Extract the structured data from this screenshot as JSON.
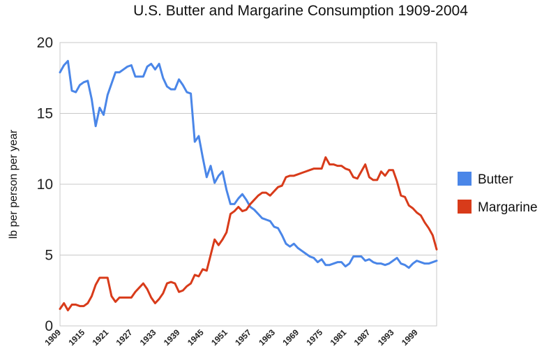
{
  "chart_data": {
    "type": "line",
    "title": "U.S. Butter and Margarine Consumption 1909-2004",
    "xlabel": "",
    "ylabel": "lb per person per year",
    "xlim": [
      1909,
      2004
    ],
    "ylim": [
      0,
      20
    ],
    "yticks": [
      0,
      5,
      10,
      15,
      20
    ],
    "xticks": [
      "1909",
      "1915",
      "1921",
      "1927",
      "1933",
      "1939",
      "1945",
      "1951",
      "1957",
      "1963",
      "1969",
      "1975",
      "1981",
      "1987",
      "1993",
      "1999"
    ],
    "grid": true,
    "legend": "right",
    "series": [
      {
        "name": "Butter",
        "color": "#4a86e8",
        "points": [
          [
            1909,
            17.9
          ],
          [
            1910,
            18.4
          ],
          [
            1911,
            18.7
          ],
          [
            1912,
            16.6
          ],
          [
            1913,
            16.5
          ],
          [
            1914,
            17.0
          ],
          [
            1915,
            17.2
          ],
          [
            1916,
            17.3
          ],
          [
            1917,
            16.0
          ],
          [
            1918,
            14.1
          ],
          [
            1919,
            15.4
          ],
          [
            1920,
            14.9
          ],
          [
            1921,
            16.3
          ],
          [
            1922,
            17.1
          ],
          [
            1923,
            17.9
          ],
          [
            1924,
            17.9
          ],
          [
            1925,
            18.1
          ],
          [
            1926,
            18.3
          ],
          [
            1927,
            18.4
          ],
          [
            1928,
            17.6
          ],
          [
            1929,
            17.6
          ],
          [
            1930,
            17.6
          ],
          [
            1931,
            18.3
          ],
          [
            1932,
            18.5
          ],
          [
            1933,
            18.1
          ],
          [
            1934,
            18.5
          ],
          [
            1935,
            17.5
          ],
          [
            1936,
            16.9
          ],
          [
            1937,
            16.7
          ],
          [
            1938,
            16.7
          ],
          [
            1939,
            17.4
          ],
          [
            1940,
            17.0
          ],
          [
            1941,
            16.5
          ],
          [
            1942,
            16.4
          ],
          [
            1943,
            13.0
          ],
          [
            1944,
            13.4
          ],
          [
            1945,
            11.9
          ],
          [
            1946,
            10.5
          ],
          [
            1947,
            11.3
          ],
          [
            1948,
            10.1
          ],
          [
            1949,
            10.6
          ],
          [
            1950,
            10.9
          ],
          [
            1951,
            9.6
          ],
          [
            1952,
            8.6
          ],
          [
            1953,
            8.6
          ],
          [
            1954,
            9.0
          ],
          [
            1955,
            9.3
          ],
          [
            1956,
            8.9
          ],
          [
            1957,
            8.4
          ],
          [
            1958,
            8.2
          ],
          [
            1959,
            7.9
          ],
          [
            1960,
            7.6
          ],
          [
            1961,
            7.5
          ],
          [
            1962,
            7.4
          ],
          [
            1963,
            7.0
          ],
          [
            1964,
            6.9
          ],
          [
            1965,
            6.4
          ],
          [
            1966,
            5.8
          ],
          [
            1967,
            5.6
          ],
          [
            1968,
            5.8
          ],
          [
            1969,
            5.5
          ],
          [
            1970,
            5.3
          ],
          [
            1971,
            5.1
          ],
          [
            1972,
            4.9
          ],
          [
            1973,
            4.8
          ],
          [
            1974,
            4.5
          ],
          [
            1975,
            4.7
          ],
          [
            1976,
            4.3
          ],
          [
            1977,
            4.3
          ],
          [
            1978,
            4.4
          ],
          [
            1979,
            4.5
          ],
          [
            1980,
            4.5
          ],
          [
            1981,
            4.2
          ],
          [
            1982,
            4.4
          ],
          [
            1983,
            4.9
          ],
          [
            1984,
            4.9
          ],
          [
            1985,
            4.9
          ],
          [
            1986,
            4.6
          ],
          [
            1987,
            4.7
          ],
          [
            1988,
            4.5
          ],
          [
            1989,
            4.4
          ],
          [
            1990,
            4.4
          ],
          [
            1991,
            4.3
          ],
          [
            1992,
            4.4
          ],
          [
            1993,
            4.6
          ],
          [
            1994,
            4.8
          ],
          [
            1995,
            4.4
          ],
          [
            1996,
            4.3
          ],
          [
            1997,
            4.1
          ],
          [
            1998,
            4.4
          ],
          [
            1999,
            4.6
          ],
          [
            2000,
            4.5
          ],
          [
            2001,
            4.4
          ],
          [
            2002,
            4.4
          ],
          [
            2003,
            4.5
          ],
          [
            2004,
            4.6
          ]
        ]
      },
      {
        "name": "Margarine",
        "color": "#d83b1a",
        "points": [
          [
            1909,
            1.2
          ],
          [
            1910,
            1.6
          ],
          [
            1911,
            1.1
          ],
          [
            1912,
            1.5
          ],
          [
            1913,
            1.5
          ],
          [
            1914,
            1.4
          ],
          [
            1915,
            1.4
          ],
          [
            1916,
            1.6
          ],
          [
            1917,
            2.1
          ],
          [
            1918,
            2.9
          ],
          [
            1919,
            3.4
          ],
          [
            1920,
            3.4
          ],
          [
            1921,
            3.4
          ],
          [
            1922,
            2.1
          ],
          [
            1923,
            1.7
          ],
          [
            1924,
            2.0
          ],
          [
            1925,
            2.0
          ],
          [
            1926,
            2.0
          ],
          [
            1927,
            2.0
          ],
          [
            1928,
            2.4
          ],
          [
            1929,
            2.7
          ],
          [
            1930,
            3.0
          ],
          [
            1931,
            2.6
          ],
          [
            1932,
            2.0
          ],
          [
            1933,
            1.6
          ],
          [
            1934,
            1.9
          ],
          [
            1935,
            2.3
          ],
          [
            1936,
            3.0
          ],
          [
            1937,
            3.1
          ],
          [
            1938,
            3.0
          ],
          [
            1939,
            2.4
          ],
          [
            1940,
            2.5
          ],
          [
            1941,
            2.8
          ],
          [
            1942,
            3.0
          ],
          [
            1943,
            3.6
          ],
          [
            1944,
            3.5
          ],
          [
            1945,
            4.0
          ],
          [
            1946,
            3.9
          ],
          [
            1947,
            5.0
          ],
          [
            1948,
            6.1
          ],
          [
            1949,
            5.7
          ],
          [
            1950,
            6.1
          ],
          [
            1951,
            6.6
          ],
          [
            1952,
            7.9
          ],
          [
            1953,
            8.1
          ],
          [
            1954,
            8.4
          ],
          [
            1955,
            8.1
          ],
          [
            1956,
            8.2
          ],
          [
            1957,
            8.6
          ],
          [
            1958,
            8.9
          ],
          [
            1959,
            9.2
          ],
          [
            1960,
            9.4
          ],
          [
            1961,
            9.4
          ],
          [
            1962,
            9.2
          ],
          [
            1963,
            9.5
          ],
          [
            1964,
            9.8
          ],
          [
            1965,
            9.9
          ],
          [
            1966,
            10.5
          ],
          [
            1967,
            10.6
          ],
          [
            1968,
            10.6
          ],
          [
            1969,
            10.7
          ],
          [
            1970,
            10.8
          ],
          [
            1971,
            10.9
          ],
          [
            1972,
            11.0
          ],
          [
            1973,
            11.1
          ],
          [
            1974,
            11.1
          ],
          [
            1975,
            11.1
          ],
          [
            1976,
            11.9
          ],
          [
            1977,
            11.4
          ],
          [
            1978,
            11.4
          ],
          [
            1979,
            11.3
          ],
          [
            1980,
            11.3
          ],
          [
            1981,
            11.1
          ],
          [
            1982,
            11.0
          ],
          [
            1983,
            10.5
          ],
          [
            1984,
            10.4
          ],
          [
            1985,
            10.9
          ],
          [
            1986,
            11.4
          ],
          [
            1987,
            10.5
          ],
          [
            1988,
            10.3
          ],
          [
            1989,
            10.3
          ],
          [
            1990,
            10.9
          ],
          [
            1991,
            10.6
          ],
          [
            1992,
            11.0
          ],
          [
            1993,
            11.0
          ],
          [
            1994,
            10.2
          ],
          [
            1995,
            9.2
          ],
          [
            1996,
            9.1
          ],
          [
            1997,
            8.5
          ],
          [
            1998,
            8.3
          ],
          [
            1999,
            8.0
          ],
          [
            2000,
            7.8
          ],
          [
            2001,
            7.3
          ],
          [
            2002,
            6.9
          ],
          [
            2003,
            6.4
          ],
          [
            2004,
            5.4
          ]
        ]
      }
    ]
  }
}
